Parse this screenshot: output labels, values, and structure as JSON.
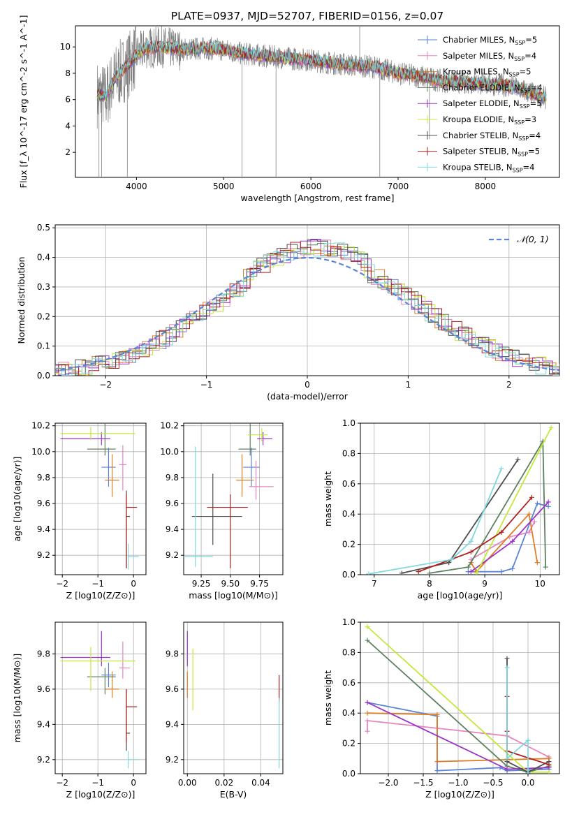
{
  "figure": {
    "title": "PLATE=0937, MJD=52707, FIBERID=0156, z=0.07"
  },
  "colors": {
    "axis": "#000000",
    "grid": "#b0b0b0",
    "spectrum": "#808080"
  },
  "models": [
    {
      "label": "Chabrier MILES, N",
      "nssp": "=5",
      "color": "#5b84d6"
    },
    {
      "label": "Salpeter MILES, N",
      "nssp": "=4",
      "color": "#e685be"
    },
    {
      "label": "Kroupa MILES, N",
      "nssp": "=5",
      "color": "#dd7d24"
    },
    {
      "label": "Chabrier ELODIE, N",
      "nssp": "=4",
      "color": "#5d8060"
    },
    {
      "label": "Salpeter ELODIE, N",
      "nssp": "=5",
      "color": "#9c32c8"
    },
    {
      "label": "Kroupa ELODIE, N",
      "nssp": "=3",
      "color": "#c3e83c"
    },
    {
      "label": "Chabrier STELIB, N",
      "nssp": "=4",
      "color": "#4d4d4d"
    },
    {
      "label": "Salpeter STELIB, N",
      "nssp": "=5",
      "color": "#b01f1f"
    },
    {
      "label": "Kroupa STELIB, N",
      "nssp": "=4",
      "color": "#7fd8dc"
    }
  ],
  "chart_data": [
    {
      "id": "spectrum",
      "type": "line",
      "title": "PLATE=0937, MJD=52707, FIBERID=0156, z=0.07",
      "xlabel": "wavelength [Angstrom, rest frame]",
      "ylabel": "Flux [f_λ 10^-17 erg cm^-2 s^-1 A^-1]",
      "xlim": [
        3300,
        8850
      ],
      "ylim": [
        0.1,
        11.6
      ],
      "xticks": [
        4000,
        5000,
        6000,
        7000,
        8000
      ],
      "yticks": [
        2,
        4,
        6,
        8,
        10
      ],
      "grid": false,
      "legend": "top-right",
      "continuum": {
        "x": [
          3550,
          3650,
          3750,
          3900,
          4000,
          4100,
          4300,
          4500,
          4800,
          5000,
          5200,
          5500,
          5800,
          6000,
          6200,
          6500,
          6700,
          7000,
          7300,
          7500,
          7800,
          8000,
          8200,
          8400,
          8600,
          8700
        ],
        "y": [
          6.4,
          6.2,
          7.6,
          8.6,
          9.4,
          9.9,
          10.0,
          9.8,
          9.9,
          9.8,
          9.5,
          9.3,
          9.1,
          9.0,
          8.8,
          8.6,
          8.5,
          8.0,
          7.7,
          7.4,
          7.3,
          7.2,
          7.1,
          6.8,
          6.3,
          6.1
        ]
      },
      "spikes": [
        {
          "x": 3570,
          "y": 0.1
        },
        {
          "x": 3600,
          "y": 0.1
        },
        {
          "x": 3895,
          "y": 0.1
        },
        {
          "x": 5210,
          "y": 0.1
        },
        {
          "x": 5600,
          "y": 0.1
        },
        {
          "x": 6790,
          "y": 0.1
        },
        {
          "x": 7360,
          "y": 3.0
        },
        {
          "x": 6560,
          "y": 11.6
        }
      ]
    },
    {
      "id": "residuals",
      "type": "line",
      "xlabel": "(data-model)/error",
      "ylabel": "Normed distribution",
      "xlim": [
        -2.5,
        2.5
      ],
      "ylim": [
        0,
        0.51
      ],
      "xticks": [
        -2,
        -1,
        0,
        1,
        2
      ],
      "yticks": [
        0.0,
        0.1,
        0.2,
        0.3,
        0.4,
        0.5
      ],
      "grid": true,
      "legend": "top-right",
      "legend_label": "𝒩(0, 1)",
      "legend_color": "#5b84d6",
      "gaussian": {
        "mean": 0,
        "sigma": 1
      }
    },
    {
      "id": "age_vs_Z",
      "type": "scatter",
      "xlabel": "Z [log10(Z/Z⊙)]",
      "ylabel": "age [log10(age/yr)]",
      "xlim": [
        -2.2,
        0.35
      ],
      "ylim": [
        9.05,
        10.22
      ],
      "xticks": [
        -2,
        -1,
        0
      ],
      "yticks": [
        9.2,
        9.4,
        9.6,
        9.8,
        10.0,
        10.2
      ],
      "grid": true,
      "points": [
        {
          "model": 0,
          "x": -0.7,
          "y": 9.88,
          "xerr": [
            0.2,
            0.2
          ],
          "yerr": [
            0.15,
            0.15
          ]
        },
        {
          "model": 1,
          "x": -0.3,
          "y": 9.9,
          "xerr": [
            0.1,
            0.1
          ],
          "yerr": [
            0.2,
            0.15
          ]
        },
        {
          "model": 2,
          "x": -0.6,
          "y": 9.78,
          "xerr": [
            0.2,
            0.2
          ],
          "yerr": [
            0.13,
            0.2
          ]
        },
        {
          "model": 3,
          "x": -0.8,
          "y": 10.02,
          "xerr": [
            0.5,
            0.3
          ],
          "yerr": [
            0.05,
            0.27
          ]
        },
        {
          "model": 4,
          "x": -0.9,
          "y": 10.1,
          "xerr": [
            1.15,
            0.25
          ],
          "yerr": [
            0.05,
            0.05
          ]
        },
        {
          "model": 5,
          "x": -1.2,
          "y": 10.14,
          "xerr": [
            0.85,
            1.25
          ],
          "yerr": [
            0.05,
            0.05
          ]
        },
        {
          "model": 6,
          "x": -0.2,
          "y": 9.5,
          "xerr": [
            0.0,
            0.1
          ],
          "yerr": [
            0.4,
            0.2
          ]
        },
        {
          "model": 7,
          "x": -0.2,
          "y": 9.57,
          "xerr": [
            0.0,
            0.3
          ],
          "yerr": [
            0.47,
            0.1
          ]
        },
        {
          "model": 8,
          "x": -0.15,
          "y": 9.19,
          "xerr": [
            0.0,
            0.3
          ],
          "yerr": [
            0.1,
            0.1
          ]
        }
      ]
    },
    {
      "id": "age_vs_mass",
      "type": "scatter",
      "xlabel": "mass [log10(M/M⊙)]",
      "xlim": [
        9.1,
        9.95
      ],
      "ylim": [
        9.05,
        10.22
      ],
      "xticks": [
        9.25,
        9.5,
        9.75
      ],
      "xticklabels": [
        "9.25",
        "9.50",
        "9.75"
      ],
      "yticks": [
        9.2,
        9.4,
        9.6,
        9.8,
        10.0,
        10.2
      ],
      "grid": true,
      "points": [
        {
          "model": 0,
          "x": 9.68,
          "y": 9.88,
          "xerr": [
            0.07,
            0.07
          ],
          "yerr": [
            0.15,
            0.15
          ]
        },
        {
          "model": 1,
          "x": 9.72,
          "y": 9.73,
          "xerr": [
            0.06,
            0.15
          ],
          "yerr": [
            0.1,
            0.2
          ]
        },
        {
          "model": 2,
          "x": 9.6,
          "y": 9.78,
          "xerr": [
            0.05,
            0.1
          ],
          "yerr": [
            0.13,
            0.2
          ]
        },
        {
          "model": 3,
          "x": 9.67,
          "y": 10.02,
          "xerr": [
            0.1,
            0.05
          ],
          "yerr": [
            0.05,
            0.26
          ]
        },
        {
          "model": 4,
          "x": 9.78,
          "y": 10.1,
          "xerr": [
            0.05,
            0.08
          ],
          "yerr": [
            0.05,
            0.05
          ]
        },
        {
          "model": 5,
          "x": 9.77,
          "y": 10.13,
          "xerr": [
            0.12,
            0.05
          ],
          "yerr": [
            0.05,
            0.05
          ]
        },
        {
          "model": 6,
          "x": 9.35,
          "y": 9.5,
          "xerr": [
            0.18,
            0.25
          ],
          "yerr": [
            0.22,
            0.33
          ]
        },
        {
          "model": 7,
          "x": 9.5,
          "y": 9.57,
          "xerr": [
            0.2,
            0.15
          ],
          "yerr": [
            0.47,
            0.1
          ]
        },
        {
          "model": 8,
          "x": 9.2,
          "y": 9.19,
          "xerr": [
            0.1,
            0.15
          ],
          "yerr": [
            0.08,
            0.85
          ]
        }
      ]
    },
    {
      "id": "massweight_vs_age",
      "type": "line",
      "xlabel": "age [log10(age/yr)]",
      "ylabel": "mass weight",
      "xlim": [
        6.75,
        10.35
      ],
      "ylim": [
        0,
        1.0
      ],
      "xticks": [
        7,
        8,
        9,
        10
      ],
      "yticks": [
        0.0,
        0.2,
        0.4,
        0.6,
        0.8,
        1.0
      ],
      "grid": true,
      "series": [
        {
          "model": 0,
          "x": [
            8.7,
            9.3,
            9.5,
            9.95,
            10.15
          ],
          "y": [
            0.02,
            0.02,
            0.04,
            0.47,
            0.45
          ]
        },
        {
          "model": 1,
          "x": [
            8.75,
            9.45,
            9.8,
            9.9
          ],
          "y": [
            0.1,
            0.25,
            0.28,
            0.35
          ]
        },
        {
          "model": 2,
          "x": [
            8.75,
            8.85,
            9.8,
            9.95
          ],
          "y": [
            0.08,
            0.02,
            0.4,
            0.08
          ]
        },
        {
          "model": 3,
          "x": [
            8.0,
            8.7,
            10.05,
            10.1
          ],
          "y": [
            0.01,
            0.05,
            0.88,
            0.05
          ]
        },
        {
          "model": 4,
          "x": [
            8.75,
            9.5,
            10.15
          ],
          "y": [
            0.02,
            0.22,
            0.48
          ]
        },
        {
          "model": 5,
          "x": [
            8.85,
            10.2
          ],
          "y": [
            0.01,
            0.97
          ]
        },
        {
          "model": 6,
          "x": [
            7.5,
            8.35,
            9.6
          ],
          "y": [
            0.01,
            0.08,
            0.76
          ]
        },
        {
          "model": 7,
          "x": [
            7.8,
            8.75,
            9.3,
            9.85
          ],
          "y": [
            0.02,
            0.15,
            0.28,
            0.51
          ]
        },
        {
          "model": 8,
          "x": [
            6.9,
            8.4,
            8.75,
            9.3
          ],
          "y": [
            0.005,
            0.1,
            0.22,
            0.7
          ]
        }
      ]
    },
    {
      "id": "mass_vs_Z",
      "type": "scatter",
      "xlabel": "Z [log10(Z/Z⊙)]",
      "ylabel": "mass [log10(M/M⊙)]",
      "xlim": [
        -2.2,
        0.35
      ],
      "ylim": [
        9.12,
        9.98
      ],
      "xticks": [
        -2,
        -1,
        0
      ],
      "yticks": [
        9.2,
        9.4,
        9.6,
        9.8
      ],
      "grid": true,
      "points": [
        {
          "model": 0,
          "x": -0.7,
          "y": 9.68,
          "xerr": [
            0.2,
            0.2
          ],
          "yerr": [
            0.07,
            0.07
          ]
        },
        {
          "model": 1,
          "x": -0.3,
          "y": 9.72,
          "xerr": [
            0.1,
            0.2
          ],
          "yerr": [
            0.06,
            0.15
          ]
        },
        {
          "model": 2,
          "x": -0.6,
          "y": 9.6,
          "xerr": [
            0.2,
            0.2
          ],
          "yerr": [
            0.05,
            0.1
          ]
        },
        {
          "model": 3,
          "x": -0.8,
          "y": 9.67,
          "xerr": [
            0.5,
            0.3
          ],
          "yerr": [
            0.1,
            0.05
          ]
        },
        {
          "model": 4,
          "x": -0.9,
          "y": 9.78,
          "xerr": [
            1.15,
            0.25
          ],
          "yerr": [
            0.05,
            0.15
          ]
        },
        {
          "model": 5,
          "x": -1.2,
          "y": 9.76,
          "xerr": [
            0.85,
            1.25
          ],
          "yerr": [
            0.17,
            0.08
          ]
        },
        {
          "model": 6,
          "x": -0.2,
          "y": 9.35,
          "xerr": [
            0.0,
            0.1
          ],
          "yerr": [
            0.1,
            0.25
          ]
        },
        {
          "model": 7,
          "x": -0.2,
          "y": 9.5,
          "xerr": [
            0.0,
            0.3
          ],
          "yerr": [
            0.2,
            0.1
          ]
        },
        {
          "model": 8,
          "x": -0.15,
          "y": 9.2,
          "xerr": [
            0.0,
            0.3
          ],
          "yerr": [
            0.05,
            0.05
          ]
        }
      ]
    },
    {
      "id": "mass_vs_EBV",
      "type": "scatter",
      "xlabel": "E(B-V)",
      "xlim": [
        -0.002,
        0.052
      ],
      "ylim": [
        9.12,
        9.98
      ],
      "xticks": [
        0.0,
        0.02,
        0.04
      ],
      "xticklabels": [
        "0.00",
        "0.02",
        "0.04"
      ],
      "yticks": [
        9.2,
        9.4,
        9.6,
        9.8
      ],
      "grid": true,
      "points": [
        {
          "model": 4,
          "x": 0.0,
          "y": 9.78,
          "xerr": [
            0,
            0
          ],
          "yerr": [
            0.05,
            0.15
          ]
        },
        {
          "model": 2,
          "x": 0.0,
          "y": 9.6,
          "xerr": [
            0,
            0
          ],
          "yerr": [
            0.05,
            0.1
          ]
        },
        {
          "model": 5,
          "x": 0.003,
          "y": 9.65,
          "xerr": [
            0,
            0
          ],
          "yerr": [
            0.17,
            0.18
          ]
        },
        {
          "model": 7,
          "x": 0.05,
          "y": 9.58,
          "xerr": [
            0,
            0
          ],
          "yerr": [
            0.05,
            0.1
          ]
        },
        {
          "model": 8,
          "x": 0.05,
          "y": 9.35,
          "xerr": [
            0,
            0
          ],
          "yerr": [
            0.2,
            0.2
          ]
        }
      ]
    },
    {
      "id": "massweight_vs_Z",
      "type": "line",
      "xlabel": "Z [log10(Z/Z⊙)]",
      "ylabel": "mass weight",
      "xlim": [
        -2.4,
        0.45
      ],
      "ylim": [
        0,
        1.0
      ],
      "xticks": [
        -2.0,
        -1.5,
        -1.0,
        -0.5,
        0.0
      ],
      "xticklabels": [
        "−2.0",
        "−1.5",
        "−1.0",
        "−0.5",
        "0.0"
      ],
      "yticks": [
        0.0,
        0.2,
        0.4,
        0.6,
        0.8,
        1.0
      ],
      "grid": true,
      "series": [
        {
          "model": 0,
          "x": [
            -2.3,
            -1.3,
            -1.3,
            -0.4,
            -0.3,
            0.3
          ],
          "y": [
            0.47,
            0.38,
            0.02,
            0.04,
            0.02,
            0.03
          ]
        },
        {
          "model": 1,
          "x": [
            -2.3,
            -2.3,
            -1.3,
            -0.3,
            0.3
          ],
          "y": [
            0.28,
            0.35,
            0.3,
            0.25,
            0.11
          ]
        },
        {
          "model": 2,
          "x": [
            -2.3,
            -1.3,
            -1.3,
            0.3
          ],
          "y": [
            0.4,
            0.39,
            0.08,
            0.1
          ]
        },
        {
          "model": 3,
          "x": [
            -2.3,
            -0.3,
            0.0,
            0.3
          ],
          "y": [
            0.88,
            0.05,
            0.01,
            0.05
          ]
        },
        {
          "model": 4,
          "x": [
            -2.3,
            -0.3,
            0.3
          ],
          "y": [
            0.47,
            0.03,
            0.04
          ]
        },
        {
          "model": 5,
          "x": [
            -2.3,
            0.0,
            0.3
          ],
          "y": [
            0.97,
            0.01,
            0.01
          ]
        },
        {
          "model": 6,
          "x": [
            -0.3,
            -0.3,
            0.0,
            0.3
          ],
          "y": [
            0.76,
            0.08,
            0.01,
            0.08
          ]
        },
        {
          "model": 7,
          "x": [
            -0.3,
            -0.3,
            -0.3,
            0.3
          ],
          "y": [
            0.51,
            0.28,
            0.15,
            0.06
          ]
        },
        {
          "model": 8,
          "x": [
            -0.3,
            -0.3,
            0.0,
            0.0
          ],
          "y": [
            0.7,
            0.1,
            0.22,
            0.005
          ]
        }
      ]
    }
  ]
}
